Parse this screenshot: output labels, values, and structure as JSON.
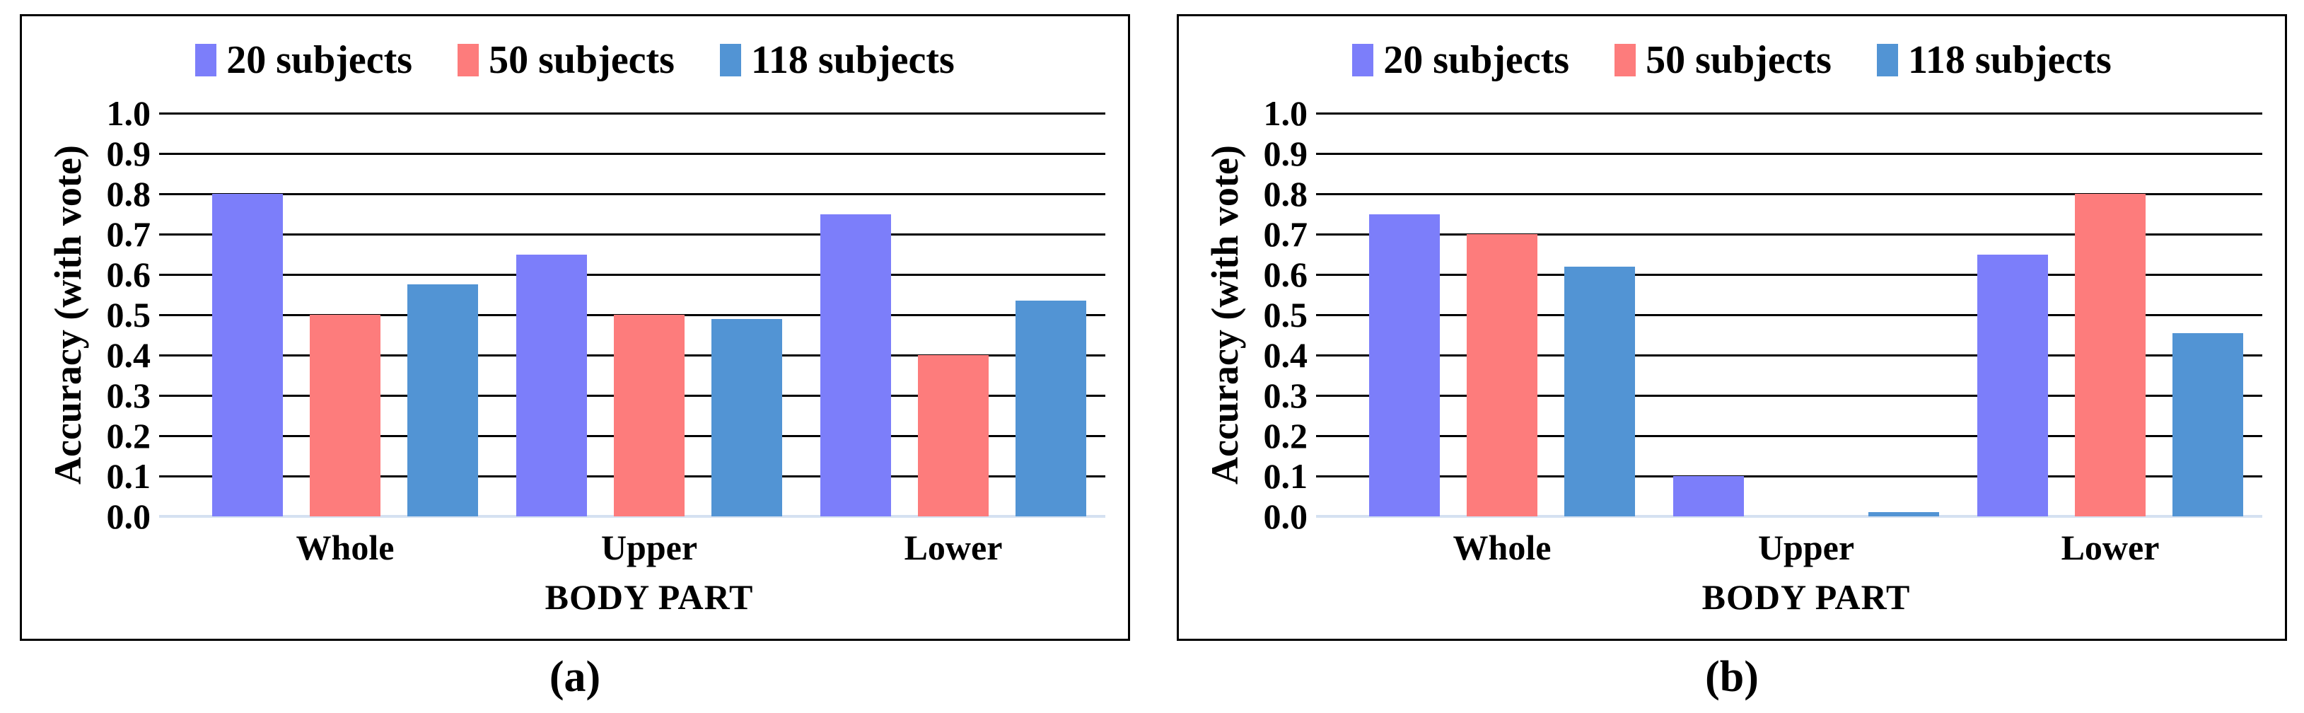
{
  "figure": {
    "ylabel": "Accuracy (with vote)",
    "xlabel": "BODY PART",
    "caption_a": "(a)",
    "caption_b": "(b)",
    "colors": {
      "series_20": "#7C7EFA",
      "series_50": "#FD7C7C",
      "series_118": "#5294D4",
      "gridline": "#000000",
      "baseline": "#D5E1F1",
      "panel_border": "#000000"
    }
  },
  "chart_data": [
    {
      "type": "bar",
      "caption": "(a)",
      "title": "",
      "categories": [
        "Whole",
        "Upper",
        "Lower"
      ],
      "series": [
        {
          "name": "20 subjects",
          "color": "#7C7EFA",
          "values": [
            0.8,
            0.65,
            0.75
          ]
        },
        {
          "name": "50 subjects",
          "color": "#FD7C7C",
          "values": [
            0.5,
            0.5,
            0.4
          ]
        },
        {
          "name": "118 subjects",
          "color": "#5294D4",
          "values": [
            0.575,
            0.49,
            0.535
          ]
        }
      ],
      "xlabel": "BODY PART",
      "ylabel": "Accuracy (with vote)",
      "ylim": [
        0.0,
        1.0
      ],
      "ytick_step": 0.1,
      "grid": true,
      "legend_position": "top"
    },
    {
      "type": "bar",
      "caption": "(b)",
      "title": "",
      "categories": [
        "Whole",
        "Upper",
        "Lower"
      ],
      "series": [
        {
          "name": "20 subjects",
          "color": "#7C7EFA",
          "values": [
            0.75,
            0.1,
            0.65
          ]
        },
        {
          "name": "50 subjects",
          "color": "#FD7C7C",
          "values": [
            0.7,
            0.0,
            0.8
          ]
        },
        {
          "name": "118 subjects",
          "color": "#5294D4",
          "values": [
            0.62,
            0.01,
            0.455
          ]
        }
      ],
      "xlabel": "BODY PART",
      "ylabel": "Accuracy (with vote)",
      "ylim": [
        0.0,
        1.0
      ],
      "ytick_step": 0.1,
      "grid": true,
      "legend_position": "top"
    }
  ]
}
